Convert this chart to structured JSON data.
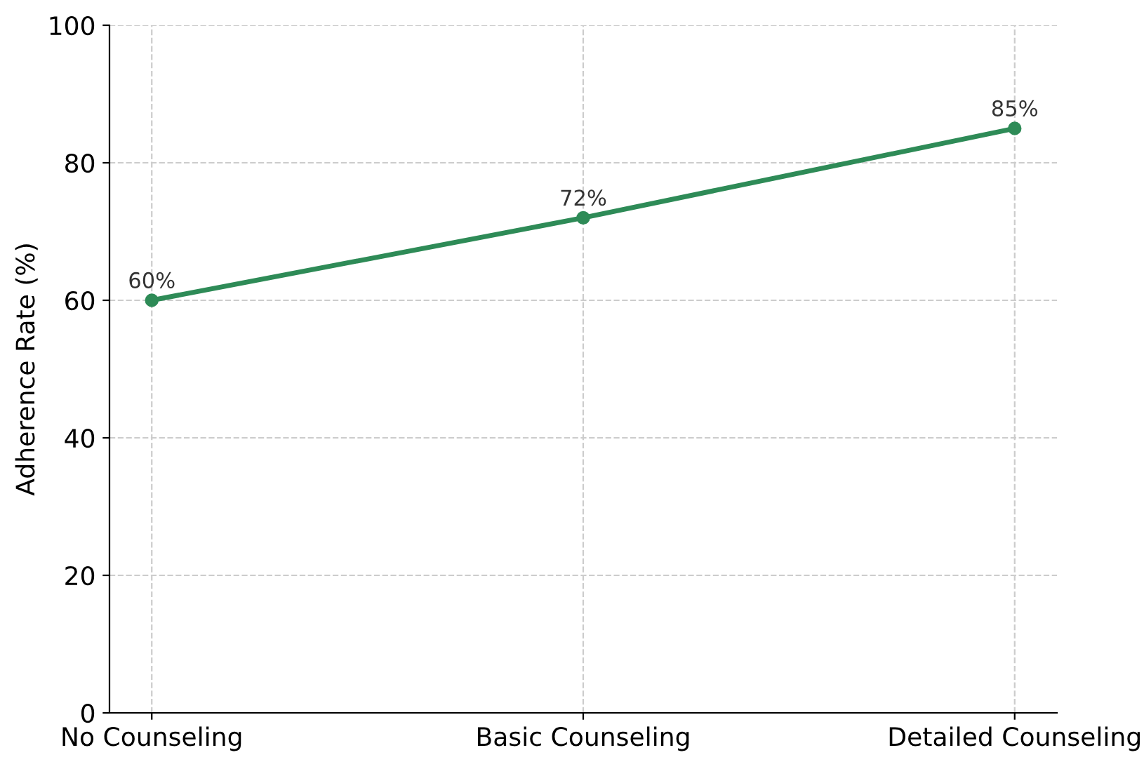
{
  "chart_data": {
    "type": "line",
    "ylabel": "Adherence Rate (%)",
    "categories": [
      "No Counseling",
      "Basic Counseling",
      "Detailed Counseling"
    ],
    "values": [
      60,
      72,
      85
    ],
    "value_labels": [
      "60%",
      "72%",
      "85%"
    ],
    "color": "#2e8b57",
    "ylim": [
      0,
      100
    ],
    "yticks": [
      0,
      20,
      40,
      60,
      80,
      100
    ],
    "grid": true,
    "marker": "circle",
    "line_style": "solid"
  }
}
